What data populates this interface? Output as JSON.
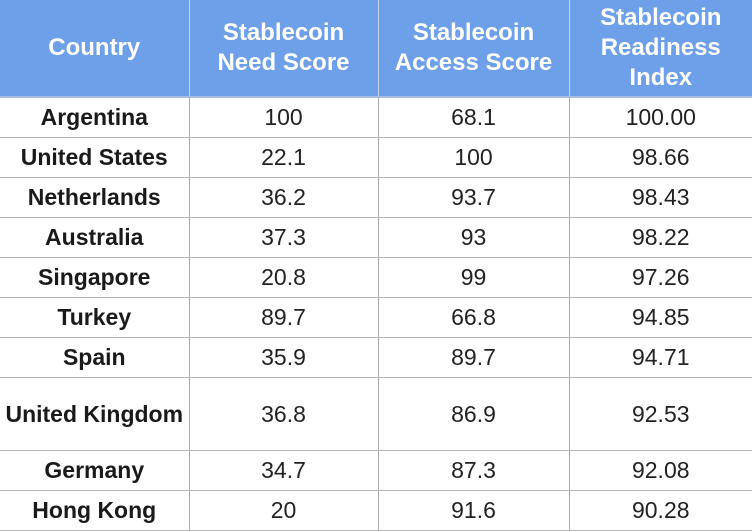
{
  "table": {
    "headers": [
      "Country",
      "Stablecoin Need Score",
      "Stablecoin Access Score",
      "Stablecoin Readiness Index"
    ],
    "rows": [
      [
        "Argentina",
        "100",
        "68.1",
        "100.00"
      ],
      [
        "United States",
        "22.1",
        "100",
        "98.66"
      ],
      [
        "Netherlands",
        "36.2",
        "93.7",
        "98.43"
      ],
      [
        "Australia",
        "37.3",
        "93",
        "98.22"
      ],
      [
        "Singapore",
        "20.8",
        "99",
        "97.26"
      ],
      [
        "Turkey",
        "89.7",
        "66.8",
        "94.85"
      ],
      [
        "Spain",
        "35.9",
        "89.7",
        "94.71"
      ],
      [
        "United Kingdom",
        "36.8",
        "86.9",
        "92.53"
      ],
      [
        "Germany",
        "34.7",
        "87.3",
        "92.08"
      ],
      [
        "Hong Kong",
        "20",
        "91.6",
        "90.28"
      ]
    ]
  },
  "colors": {
    "header_background": "#6ea0ea",
    "header_text": "#ffffff",
    "body_text": "#222222",
    "grid_line": "#a8a8a8"
  }
}
